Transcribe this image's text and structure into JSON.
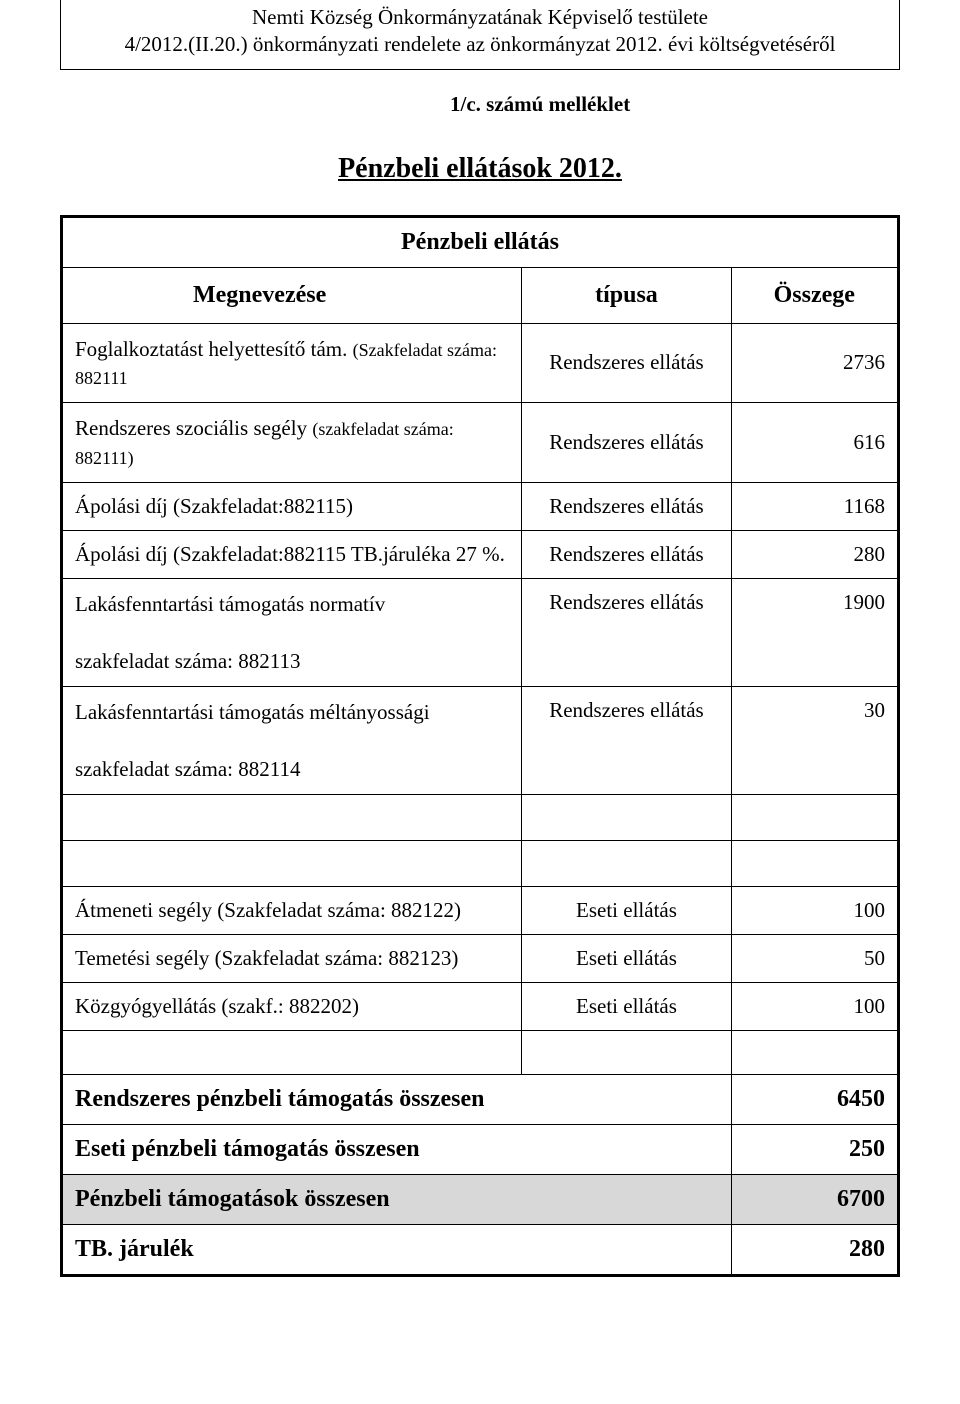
{
  "header": {
    "line1": "Nemti Község Önkormányzatának Képviselő testülete",
    "line2": "4/2012.(II.20.) önkormányzati rendelete az önkormányzat 2012. évi költségvetéséről"
  },
  "annex": "1/c. számú melléklet",
  "main_title": "Pénzbeli ellátások 2012.",
  "table_title": "Pénzbeli ellátás",
  "columns": {
    "name": "Megnevezése",
    "type": "típusa",
    "amount": "Összege"
  },
  "rows": [
    {
      "name_html": "Foglalkoztatást helyettesítő tám.  <span class=\"sub\">(Szakfeladat száma: 882111</span>",
      "type": "Rendszeres ellátás",
      "amount": "2736"
    },
    {
      "name_html": "Rendszeres szociális segély <span class=\"sub\">(szakfeladat száma: 882111)</span>",
      "type": "Rendszeres ellátás",
      "amount": "616"
    },
    {
      "name_html": "Ápolási díj (Szakfeladat:882115)",
      "type": "Rendszeres ellátás",
      "amount": "1168"
    },
    {
      "name_html": "Ápolási díj (Szakfeladat:882115 TB.járuléka 27 %.",
      "type": "Rendszeres ellátás",
      "amount": "280"
    },
    {
      "name_html": "Lakásfenntartási támogatás normatív<br><br>szakfeladat száma: 882113",
      "type": "Rendszeres ellátás",
      "amount": "1900"
    },
    {
      "name_html": "Lakásfenntartási támogatás méltányossági<br><br>szakfeladat száma: 882114",
      "type": "Rendszeres ellátás",
      "amount": "30"
    }
  ],
  "rows2": [
    {
      "name_html": "Átmeneti segély (Szakfeladat száma: 882122)",
      "type": "Eseti ellátás",
      "amount": "100"
    },
    {
      "name_html": "Temetési segély (Szakfeladat száma: 882123)",
      "type": "Eseti ellátás",
      "amount": "50"
    },
    {
      "name_html": "Közgyógyellátás (szakf.: 882202)",
      "type": "Eseti ellátás",
      "amount": "100"
    }
  ],
  "summary": [
    {
      "label": "Rendszeres pénzbeli támogatás összesen",
      "amount": "6450",
      "grand": false
    },
    {
      "label": "Eseti pénzbeli támogatás összesen",
      "amount": "250",
      "grand": false
    },
    {
      "label": "Pénzbeli támogatások összesen",
      "amount": "6700",
      "grand": true
    },
    {
      "label": "TB. járulék",
      "amount": "280",
      "grand": false
    }
  ],
  "colors": {
    "text": "#000000",
    "background": "#ffffff",
    "highlight": "#d8d8d8",
    "border": "#000000"
  }
}
